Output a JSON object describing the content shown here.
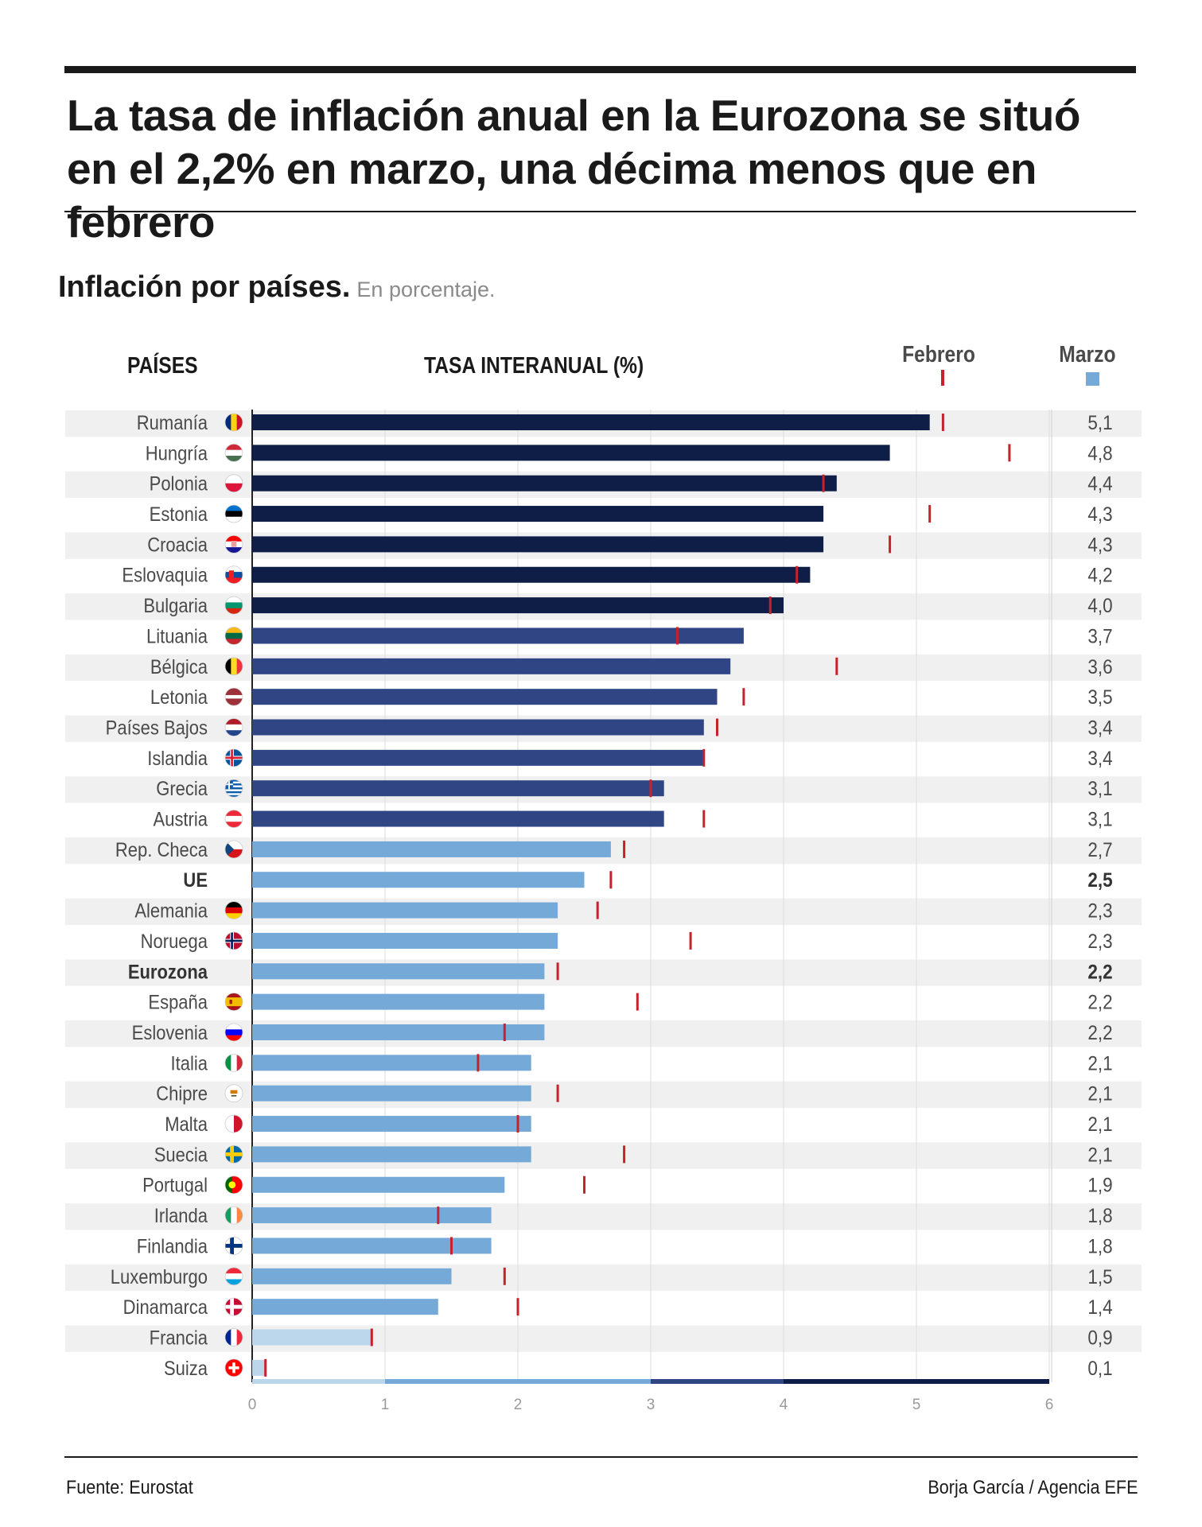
{
  "header": {
    "title": "La tasa de inflación anual en la Eurozona se situó en el 2,2% en marzo, una décima menos que en febrero",
    "subtitle": "Inflación por países.",
    "subtitle_note": "En porcentaje."
  },
  "columns": {
    "countries": "PAÍSES",
    "rate": "TASA INTERANUAL (%)"
  },
  "legend": {
    "february": "Febrero",
    "march": "Marzo"
  },
  "colors": {
    "band1": "#0f1e46",
    "band2": "#2f4584",
    "band3": "#74a9d8",
    "band4": "#bcd6ec",
    "february_marker": "#c6222b",
    "row_stripe": "#f0f0f0"
  },
  "chart_data": {
    "type": "bar",
    "orientation": "horizontal",
    "xlim": [
      0,
      6
    ],
    "xticks": [
      "0",
      "1",
      "2",
      "3",
      "4",
      "5",
      "6"
    ],
    "color_bands": [
      [
        0,
        1
      ],
      [
        1,
        3
      ],
      [
        3,
        4
      ],
      [
        4,
        6
      ]
    ],
    "categories": [
      "Rumanía",
      "Hungría",
      "Polonia",
      "Estonia",
      "Croacia",
      "Eslovaquia",
      "Bulgaria",
      "Lituania",
      "Bélgica",
      "Letonia",
      "Países Bajos",
      "Islandia",
      "Grecia",
      "Austria",
      "Rep. Checa",
      "UE",
      "Alemania",
      "Noruega",
      "Eurozona",
      "España",
      "Eslovenia",
      "Italia",
      "Chipre",
      "Malta",
      "Suecia",
      "Portugal",
      "Irlanda",
      "Finlandia",
      "Luxemburgo",
      "Dinamarca",
      "Francia",
      "Suiza"
    ],
    "bold": [
      "UE",
      "Eurozona"
    ],
    "flags": [
      "ro",
      "hu",
      "pl",
      "ee",
      "hr",
      "sk",
      "bg",
      "lt",
      "be",
      "lv",
      "nl",
      "is",
      "gr",
      "at",
      "cz",
      "",
      "de",
      "no",
      "",
      "es",
      "si",
      "it",
      "cy",
      "mt",
      "se",
      "pt",
      "ie",
      "fi",
      "lu",
      "dk",
      "fr",
      "ch"
    ],
    "series": [
      {
        "name": "Marzo",
        "values": [
          5.1,
          4.8,
          4.4,
          4.3,
          4.3,
          4.2,
          4.0,
          3.7,
          3.6,
          3.5,
          3.4,
          3.4,
          3.1,
          3.1,
          2.7,
          2.5,
          2.3,
          2.3,
          2.2,
          2.2,
          2.2,
          2.1,
          2.1,
          2.1,
          2.1,
          1.9,
          1.8,
          1.8,
          1.5,
          1.4,
          0.9,
          0.1
        ]
      },
      {
        "name": "Febrero",
        "values": [
          5.2,
          5.7,
          4.3,
          5.1,
          4.8,
          4.1,
          3.9,
          3.2,
          4.4,
          3.7,
          3.5,
          3.4,
          3.0,
          3.4,
          2.8,
          2.7,
          2.6,
          3.3,
          2.3,
          2.9,
          1.9,
          1.7,
          2.3,
          2.0,
          2.8,
          2.5,
          1.4,
          1.5,
          1.9,
          2.0,
          0.9,
          0.1
        ]
      }
    ],
    "value_labels": [
      "5,1",
      "4,8",
      "4,4",
      "4,3",
      "4,3",
      "4,2",
      "4,0",
      "3,7",
      "3,6",
      "3,5",
      "3,4",
      "3,4",
      "3,1",
      "3,1",
      "2,7",
      "2,5",
      "2,3",
      "2,3",
      "2,2",
      "2,2",
      "2,2",
      "2,1",
      "2,1",
      "2,1",
      "2,1",
      "1,9",
      "1,8",
      "1,8",
      "1,5",
      "1,4",
      "0,9",
      "0,1"
    ]
  },
  "footer": {
    "source": "Fuente: Eurostat",
    "credit": "Borja García / Agencia EFE"
  }
}
